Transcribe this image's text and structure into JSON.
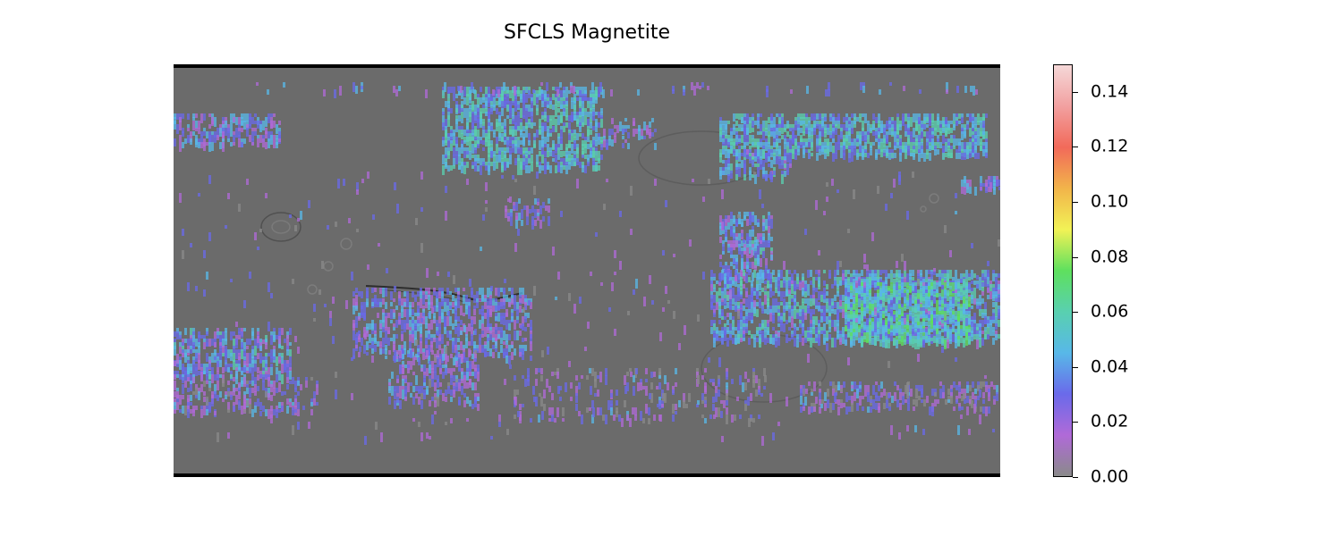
{
  "title": "SFCLS Magnetite",
  "colorbar": {
    "min": 0.0,
    "max": 0.15,
    "ticks": [
      "0.00",
      "0.02",
      "0.04",
      "0.06",
      "0.08",
      "0.10",
      "0.12",
      "0.14"
    ],
    "tick_values": [
      0.0,
      0.02,
      0.04,
      0.06,
      0.08,
      0.1,
      0.12,
      0.14
    ],
    "colormap": [
      "#8a8a8a",
      "#b06ad8",
      "#6a6aea",
      "#58b8e8",
      "#59d0b0",
      "#5ee05e",
      "#f2f256",
      "#f2b44a",
      "#f26a5a",
      "#f2a0a0",
      "#f5d8d8"
    ]
  },
  "map": {
    "basemap_color": "#6b6b6b",
    "type": "heatmap"
  }
}
